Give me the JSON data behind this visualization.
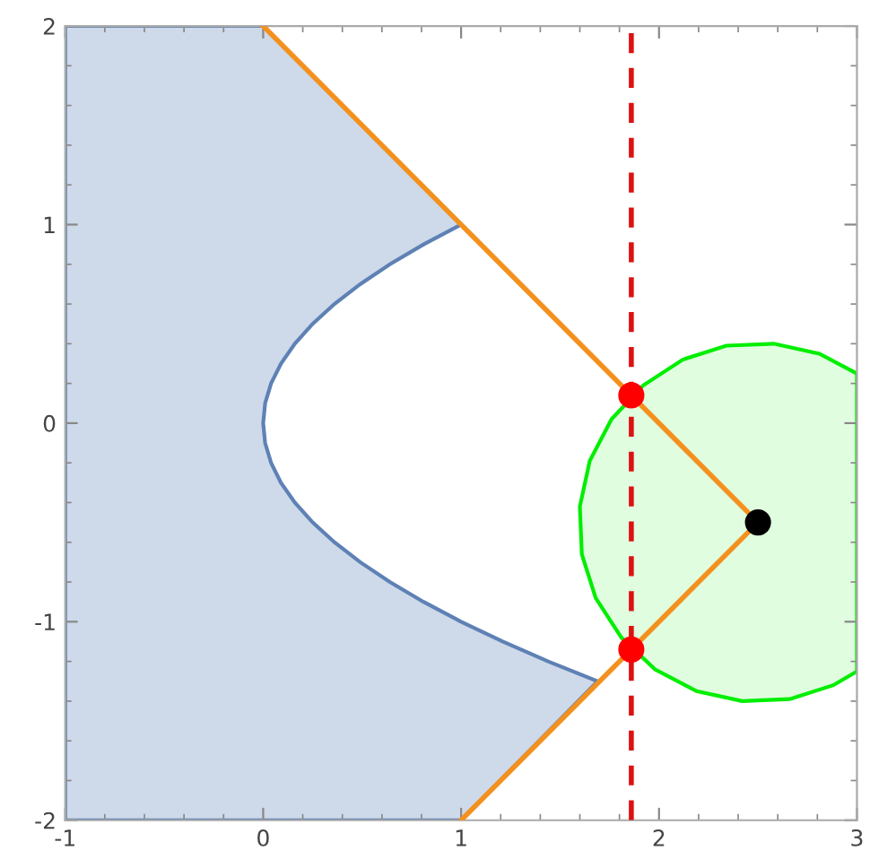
{
  "chart_data": {
    "type": "line",
    "xlim": [
      -1,
      3
    ],
    "ylim": [
      -2,
      2
    ],
    "xticks": [
      -1,
      0,
      1,
      2,
      3
    ],
    "yticks": [
      -2,
      -1,
      0,
      1,
      2
    ],
    "grid": false,
    "legend": false,
    "series": [
      {
        "type": "area",
        "color": "#5e81b5",
        "x": [
          -1,
          0,
          1,
          0.81,
          0.64,
          0.49,
          0.36,
          0.25,
          0.16,
          0.09,
          0.04,
          0.01,
          0,
          0.01,
          0.04,
          0.09,
          0.16,
          0.25,
          0.36,
          0.49,
          0.64,
          0.81,
          1,
          1.21,
          1.44,
          1.69,
          1,
          -1
        ],
        "values": [
          2,
          2,
          1,
          0.9,
          0.8,
          0.7,
          0.6,
          0.5,
          0.4,
          0.3,
          0.2,
          0.1,
          0,
          -0.1,
          -0.2,
          -0.3,
          -0.4,
          -0.5,
          -0.6,
          -0.7,
          -0.8,
          -0.9,
          -1,
          -1.1,
          -1.2,
          -1.3,
          -2,
          -2
        ]
      },
      {
        "type": "area",
        "color": "#00ee00",
        "x": [
          3.0,
          2.81,
          2.58,
          2.34,
          2.12,
          1.92,
          1.76,
          1.65,
          1.6,
          1.61,
          1.68,
          1.81,
          1.98,
          2.19,
          2.42,
          2.66,
          2.88,
          3.0
        ],
        "values": [
          0.25,
          0.35,
          0.4,
          0.39,
          0.32,
          0.19,
          0.02,
          -0.19,
          -0.42,
          -0.66,
          -0.88,
          -1.08,
          -1.24,
          -1.35,
          -1.4,
          -1.39,
          -1.32,
          -1.25
        ]
      },
      {
        "color": "#f4911e",
        "x": [
          0,
          2.5,
          1
        ],
        "values": [
          2,
          -0.5,
          -2
        ]
      },
      {
        "type": "scatter",
        "color": "#ff0000",
        "x": [
          1.86,
          1.86
        ],
        "values": [
          0.14,
          -1.14
        ]
      },
      {
        "type": "scatter",
        "color": "#000000",
        "x": [
          2.5
        ],
        "values": [
          -0.5
        ]
      }
    ],
    "ref_lines": [
      {
        "axis": "x",
        "value": 1.86,
        "color": "#dd1111",
        "line_style": "dashed"
      }
    ]
  }
}
